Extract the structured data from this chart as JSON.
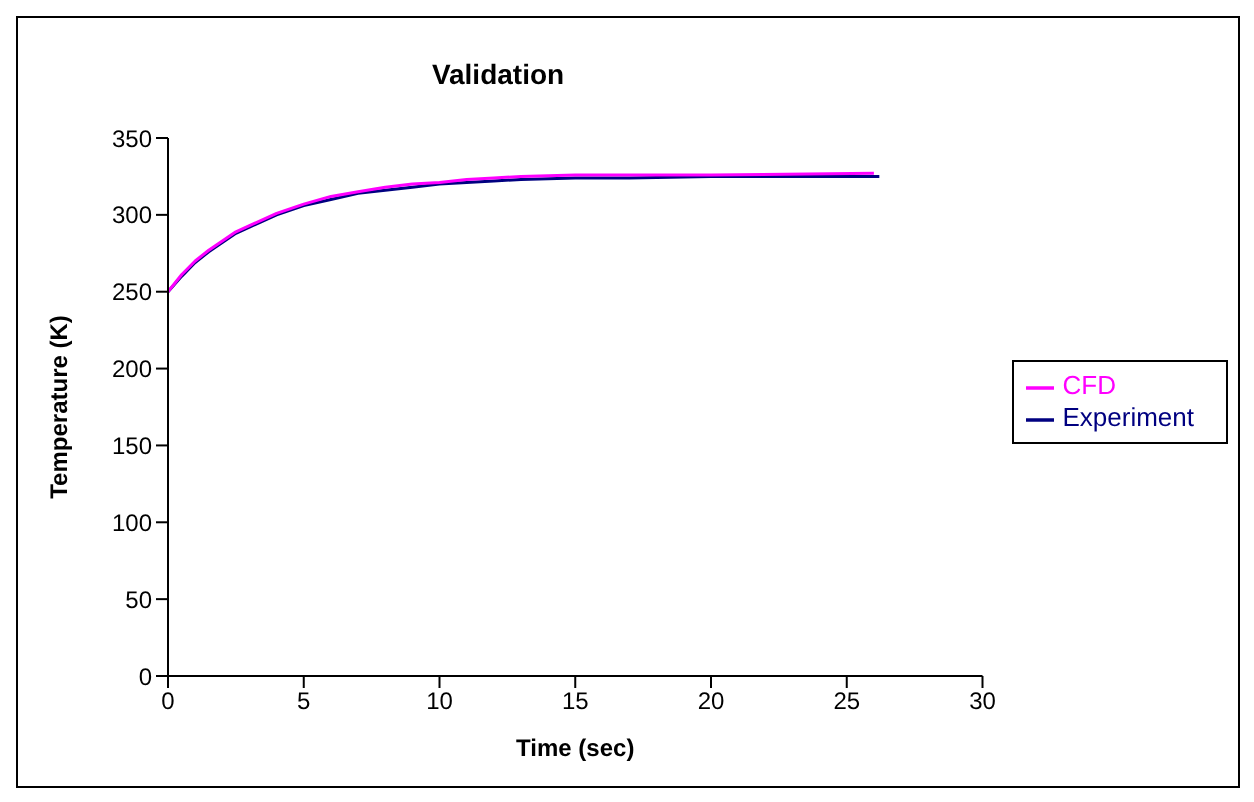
{
  "chart_data": {
    "type": "line",
    "title": "Validation",
    "xlabel": "Time (sec)",
    "ylabel": "Temperature (K)",
    "xlim": [
      0,
      30
    ],
    "xticks": [
      0,
      5,
      10,
      15,
      20,
      25,
      30
    ],
    "ylim": [
      0,
      350
    ],
    "yticks": [
      0,
      50,
      100,
      150,
      200,
      250,
      300,
      350
    ],
    "grid": false,
    "legend": "right",
    "marker": "none",
    "line_style": "solid",
    "series": [
      {
        "name": "Experiment",
        "color": "#000080",
        "x": [
          0,
          0.5,
          1,
          1.5,
          2,
          2.5,
          3,
          4,
          5,
          6,
          7,
          8,
          9,
          10,
          11,
          12,
          13,
          15,
          17,
          20,
          26.2
        ],
        "values": [
          250,
          260,
          269,
          276,
          282,
          288,
          292,
          300,
          306,
          310,
          314,
          316,
          318,
          320,
          321,
          322,
          323,
          324,
          324,
          325,
          325
        ]
      },
      {
        "name": "CFD",
        "color": "#ff00ff",
        "x": [
          0,
          0.5,
          1,
          1.5,
          2,
          2.5,
          3,
          4,
          5,
          6,
          7,
          8,
          9,
          10,
          11,
          12,
          13,
          15,
          20,
          26
        ],
        "values": [
          250,
          261,
          270,
          277,
          283,
          289,
          293,
          301,
          307,
          312,
          315,
          318,
          320,
          321,
          323,
          324,
          325,
          326,
          326,
          327
        ]
      }
    ]
  }
}
